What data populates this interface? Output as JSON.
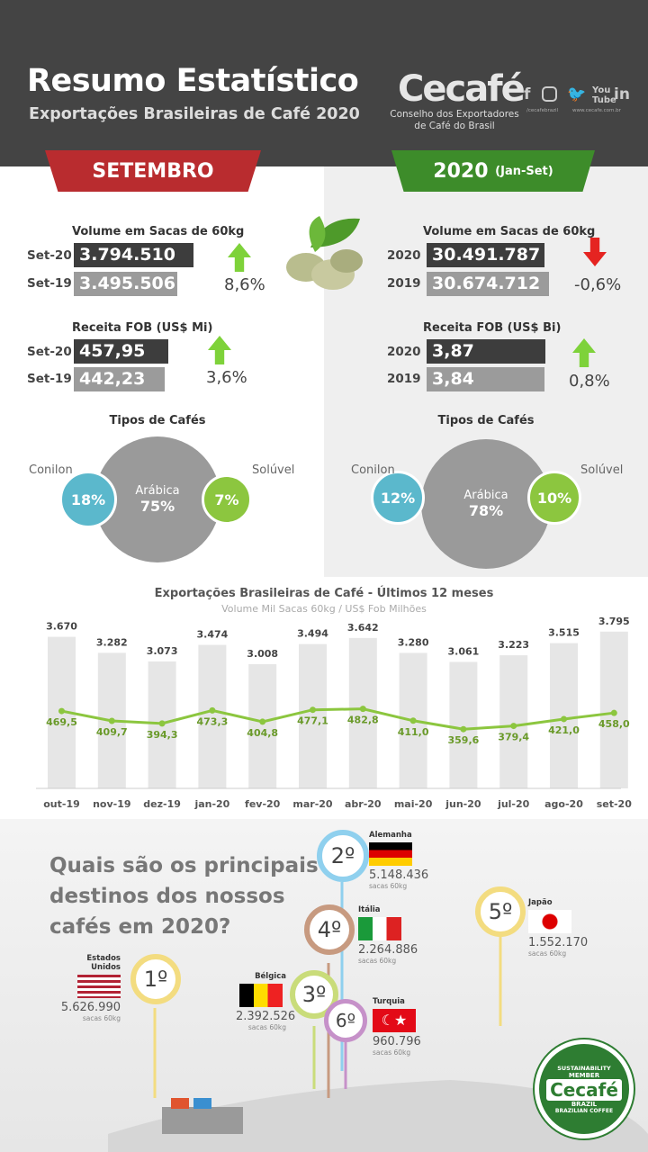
{
  "header": {
    "title": "Resumo Estatístico",
    "subtitle": "Exportações Brasileiras de Café 2020",
    "logo": "Cecafé",
    "logo_sub": "Conselho dos Exportadores de Café do Brasil",
    "social_handle": "/cecafebrazil",
    "website": "www.cecafe.com.br",
    "social_icons": [
      "facebook-icon",
      "instagram-icon",
      "twitter-icon",
      "youtube-icon",
      "linkedin-icon"
    ]
  },
  "left": {
    "ribbon": "SETEMBRO",
    "volume": {
      "label": "Volume em Sacas de 60kg",
      "rows": [
        {
          "label": "Set-20",
          "value": "3.794.510"
        },
        {
          "label": "Set-19",
          "value": "3.495.506"
        }
      ],
      "change": "8,6%",
      "direction": "up"
    },
    "receita": {
      "label": "Receita FOB (US$ Mi)",
      "rows": [
        {
          "label": "Set-20",
          "value": "457,95"
        },
        {
          "label": "Set-19",
          "value": "442,23"
        }
      ],
      "change": "3,6%",
      "direction": "up"
    },
    "tipos": {
      "title": "Tipos de Cafés",
      "conilon_label": "Conilon",
      "conilon": "18%",
      "arabica_label": "Arábica",
      "arabica": "75%",
      "soluvel_label": "Solúvel",
      "soluvel": "7%"
    }
  },
  "right": {
    "ribbon": "2020",
    "ribbon_sub": "(Jan-Set)",
    "volume": {
      "label": "Volume em Sacas de 60kg",
      "rows": [
        {
          "label": "2020",
          "value": "30.491.787"
        },
        {
          "label": "2019",
          "value": "30.674.712"
        }
      ],
      "change": "-0,6%",
      "direction": "down"
    },
    "receita": {
      "label": "Receita FOB (US$ Bi)",
      "rows": [
        {
          "label": "2020",
          "value": "3,87"
        },
        {
          "label": "2019",
          "value": "3,84"
        }
      ],
      "change": "0,8%",
      "direction": "up"
    },
    "tipos": {
      "title": "Tipos de Cafés",
      "conilon_label": "Conilon",
      "conilon": "12%",
      "arabica_label": "Arábica",
      "arabica": "78%",
      "soluvel_label": "Solúvel",
      "soluvel": "10%"
    }
  },
  "chart_data": {
    "type": "bar",
    "title": "Exportações Brasileiras de Café - Últimos 12 meses",
    "subtitle": "Volume Mil Sacas 60kg / US$ Fob Milhões",
    "categories": [
      "out-19",
      "nov-19",
      "dez-19",
      "jan-20",
      "fev-20",
      "mar-20",
      "abr-20",
      "mai-20",
      "jun-20",
      "jul-20",
      "ago-20",
      "set-20"
    ],
    "series": [
      {
        "name": "Volume Mil Sacas 60kg",
        "type": "bar",
        "values": [
          3670,
          3282,
          3073,
          3474,
          3008,
          3494,
          3642,
          3280,
          3061,
          3223,
          3515,
          3795
        ],
        "labels": [
          "3.670",
          "3.282",
          "3.073",
          "3.474",
          "3.008",
          "3.494",
          "3.642",
          "3.280",
          "3.061",
          "3.223",
          "3.515",
          "3.795"
        ]
      },
      {
        "name": "US$ Fob Milhões",
        "type": "line",
        "values": [
          469.5,
          409.7,
          394.3,
          473.3,
          404.8,
          477.1,
          482.8,
          411.0,
          359.6,
          379.4,
          421.0,
          458.0
        ],
        "labels": [
          "469,5",
          "409,7",
          "394,3",
          "473,3",
          "404,8",
          "477,1",
          "482,8",
          "411,0",
          "359,6",
          "379,4",
          "421,0",
          "458,0"
        ]
      }
    ],
    "colors": {
      "bar": "#e6e6e6",
      "line": "#8cc63f",
      "line_label": "#6a9a2a"
    }
  },
  "destinos": {
    "question": [
      "Quais são os principais",
      "destinos dos nossos",
      "cafés em 2020?"
    ],
    "unit": "sacas 60kg",
    "countries": [
      {
        "rank": "1º",
        "name": "Estados Unidos",
        "value": "5.626.990"
      },
      {
        "rank": "2º",
        "name": "Alemanha",
        "value": "5.148.436"
      },
      {
        "rank": "3º",
        "name": "Bélgica",
        "value": "2.392.526"
      },
      {
        "rank": "4º",
        "name": "Itália",
        "value": "2.264.886"
      },
      {
        "rank": "5º",
        "name": "Japão",
        "value": "1.552.170"
      },
      {
        "rank": "6º",
        "name": "Turquia",
        "value": "960.796"
      }
    ],
    "seal": {
      "top": "SUSTAINABILITY",
      "member": "MEMBER",
      "logo": "Cecafé",
      "country": "BRAZIL",
      "bottom": "BRAZILIAN COFFEE"
    }
  }
}
